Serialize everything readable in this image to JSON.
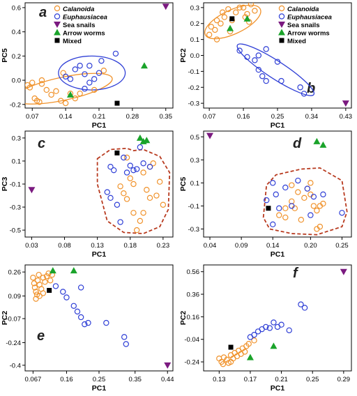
{
  "colors": {
    "calanoida": "#f0922b",
    "euphausiacea": "#2f3fd6",
    "sea_snails": "#7b1a80",
    "arrow_worms": "#1aa32a",
    "mixed": "#000000",
    "convex_hull": "#b83a1f"
  },
  "legend_items": [
    {
      "label": "Calanoida",
      "italic": true,
      "shape": "open-circle",
      "color": "#f0922b"
    },
    {
      "label": "Euphausiacea",
      "italic": true,
      "shape": "open-circle",
      "color": "#2f3fd6"
    },
    {
      "label": "Sea snails",
      "italic": false,
      "shape": "triangle-down",
      "color": "#7b1a80"
    },
    {
      "label": "Arrow worms",
      "italic": false,
      "shape": "triangle-up",
      "color": "#1aa32a"
    },
    {
      "label": "Mixed",
      "italic": false,
      "shape": "square",
      "color": "#000000"
    }
  ],
  "chart_data": [
    {
      "panel": "a",
      "type": "scatter",
      "xlabel": "PC1",
      "ylabel": "PC5",
      "xlim": [
        0.055,
        0.365
      ],
      "ylim": [
        -0.23,
        0.64
      ],
      "xticks": [
        "0.07",
        "0.14",
        "0.21",
        "0.28",
        "0.35"
      ],
      "xtick_values": [
        0.07,
        0.14,
        0.21,
        0.28,
        0.35
      ],
      "yticks": [
        "-0.2",
        "0.0",
        "0.2",
        "0.4",
        "0.6"
      ],
      "ytick_values": [
        -0.2,
        0.0,
        0.2,
        0.4,
        0.6
      ],
      "legend": true,
      "legend_position": "top-left",
      "series": [
        {
          "name": "Calanoida",
          "group": "calanoida",
          "x": [
            0.06,
            0.065,
            0.07,
            0.075,
            0.08,
            0.085,
            0.09,
            0.1,
            0.11,
            0.12,
            0.13,
            0.14,
            0.15,
            0.16,
            0.17,
            0.2,
            0.22,
            0.09,
            0.135
          ],
          "y": [
            -0.04,
            -0.06,
            -0.02,
            -0.15,
            -0.17,
            -0.18,
            -0.03,
            -0.08,
            -0.12,
            -0.09,
            -0.17,
            -0.19,
            -0.11,
            -0.15,
            -0.11,
            -0.08,
            0.08,
            0.0,
            0.06
          ]
        },
        {
          "name": "Euphausiacea",
          "group": "euphausiacea",
          "x": [
            0.14,
            0.15,
            0.16,
            0.17,
            0.18,
            0.18,
            0.19,
            0.19,
            0.2,
            0.21,
            0.215,
            0.245
          ],
          "y": [
            0.03,
            0.01,
            0.09,
            0.12,
            0.05,
            -0.07,
            -0.02,
            0.12,
            0.01,
            0.06,
            0.16,
            0.22
          ]
        },
        {
          "name": "Sea snails",
          "group": "sea_snails",
          "x": [
            0.35
          ],
          "y": [
            0.61
          ]
        },
        {
          "name": "Arrow worms",
          "group": "arrow_worms",
          "x": [
            0.15,
            0.305
          ],
          "y": [
            -0.12,
            0.12
          ]
        },
        {
          "name": "Mixed",
          "group": "mixed",
          "x": [
            0.248
          ],
          "y": [
            -0.19
          ]
        }
      ],
      "ellipses": [
        {
          "group": "calanoida",
          "cx": 0.135,
          "cy": -0.07,
          "rx": 0.105,
          "ry": 0.095,
          "angle_deg": -12
        },
        {
          "group": "euphausiacea",
          "cx": 0.195,
          "cy": 0.06,
          "rx": 0.07,
          "ry": 0.14,
          "angle_deg": 0
        }
      ]
    },
    {
      "panel": "b",
      "type": "scatter",
      "xlabel": "PC1",
      "ylabel": "PC2",
      "xlim": [
        0.055,
        0.445
      ],
      "ylim": [
        -0.33,
        0.33
      ],
      "xticks": [
        "0.07",
        "0.16",
        "0.25",
        "0.34",
        "0.43"
      ],
      "xtick_values": [
        0.07,
        0.16,
        0.25,
        0.34,
        0.43
      ],
      "yticks": [
        "-0.3",
        "-0.2",
        "-0.1",
        "0.0",
        "0.1",
        "0.2",
        "0.3"
      ],
      "ytick_values": [
        -0.3,
        -0.2,
        -0.1,
        0.0,
        0.1,
        0.2,
        0.3
      ],
      "legend": true,
      "legend_position": "top-right",
      "series": [
        {
          "name": "Calanoida",
          "group": "calanoida",
          "x": [
            0.07,
            0.075,
            0.085,
            0.09,
            0.1,
            0.105,
            0.11,
            0.12,
            0.13,
            0.14,
            0.15,
            0.16,
            0.165,
            0.17,
            0.175,
            0.18,
            0.19,
            0.09,
            0.125
          ],
          "y": [
            0.13,
            0.18,
            0.16,
            0.22,
            0.2,
            0.27,
            0.24,
            0.29,
            0.22,
            0.27,
            0.3,
            0.3,
            0.24,
            0.26,
            0.21,
            0.32,
            0.28,
            0.1,
            0.15
          ]
        },
        {
          "name": "Euphausiacea",
          "group": "euphausiacea",
          "x": [
            0.15,
            0.17,
            0.19,
            0.2,
            0.21,
            0.2,
            0.22,
            0.22,
            0.25,
            0.26,
            0.31,
            0.32
          ],
          "y": [
            0.03,
            -0.01,
            -0.03,
            -0.09,
            -0.13,
            0.0,
            -0.16,
            0.04,
            -0.04,
            -0.16,
            -0.2,
            -0.24
          ]
        },
        {
          "name": "Sea snails",
          "group": "sea_snails",
          "x": [
            0.43
          ],
          "y": [
            -0.3
          ]
        },
        {
          "name": "Arrow worms",
          "group": "arrow_worms",
          "x": [
            0.125,
            0.17
          ],
          "y": [
            0.17,
            0.23
          ]
        },
        {
          "name": "Mixed",
          "group": "mixed",
          "x": [
            0.13
          ],
          "y": [
            0.23
          ]
        }
      ],
      "ellipses": [
        {
          "group": "calanoida",
          "cx": 0.132,
          "cy": 0.21,
          "rx": 0.08,
          "ry": 0.075,
          "angle_deg": -25
        },
        {
          "group": "euphausiacea",
          "cx": 0.245,
          "cy": -0.09,
          "rx": 0.12,
          "ry": 0.055,
          "angle_deg": 33
        }
      ]
    },
    {
      "panel": "c",
      "type": "scatter",
      "xlabel": "PC1",
      "ylabel": "PC3",
      "xlim": [
        0.02,
        0.245
      ],
      "ylim": [
        -0.56,
        0.36
      ],
      "xticks": [
        "0.03",
        "0.08",
        "0.13",
        "0.18",
        "0.23"
      ],
      "xtick_values": [
        0.03,
        0.08,
        0.13,
        0.18,
        0.23
      ],
      "yticks": [
        "-0.5",
        "-0.3",
        "-0.1",
        "0.1",
        "0.3"
      ],
      "ytick_values": [
        -0.5,
        -0.3,
        -0.1,
        0.1,
        0.3
      ],
      "legend": false,
      "series": [
        {
          "name": "Calanoida",
          "group": "calanoida",
          "x": [
            0.165,
            0.17,
            0.175,
            0.18,
            0.185,
            0.19,
            0.195,
            0.2,
            0.205,
            0.21,
            0.215,
            0.22,
            0.225,
            0.23,
            0.2,
            0.175,
            0.185,
            0.21
          ],
          "y": [
            -0.12,
            -0.18,
            -0.23,
            -0.05,
            -0.35,
            -0.5,
            -0.42,
            0.0,
            -0.15,
            0.05,
            0.08,
            -0.2,
            -0.08,
            -0.28,
            -0.35,
            0.13,
            -0.1,
            -0.22
          ]
        },
        {
          "name": "Euphausiacea",
          "group": "euphausiacea",
          "x": [
            0.145,
            0.15,
            0.155,
            0.16,
            0.165,
            0.17,
            0.175,
            0.18,
            0.185,
            0.19,
            0.195,
            0.2,
            0.21,
            0.15
          ],
          "y": [
            -0.17,
            0.05,
            0.02,
            -0.28,
            -0.43,
            0.13,
            0.0,
            0.06,
            0.02,
            0.03,
            0.22,
            0.08,
            0.05,
            -0.22
          ]
        },
        {
          "name": "Sea snails",
          "group": "sea_snails",
          "x": [
            0.03
          ],
          "y": [
            -0.15
          ]
        },
        {
          "name": "Arrow worms",
          "group": "arrow_worms",
          "x": [
            0.195,
            0.2,
            0.205
          ],
          "y": [
            0.3,
            0.27,
            0.28
          ]
        },
        {
          "name": "Mixed",
          "group": "mixed",
          "x": [
            0.16
          ],
          "y": [
            0.17
          ]
        }
      ],
      "hull": {
        "group": "convex_hull",
        "x": [
          0.13,
          0.15,
          0.175,
          0.185,
          0.2,
          0.225,
          0.24,
          0.238,
          0.225,
          0.2,
          0.17,
          0.145,
          0.13
        ],
        "y": [
          0.12,
          0.2,
          0.21,
          0.19,
          0.2,
          0.14,
          0.0,
          -0.32,
          -0.47,
          -0.53,
          -0.52,
          -0.42,
          -0.1
        ]
      }
    },
    {
      "panel": "d",
      "type": "scatter",
      "xlabel": "PC1",
      "ylabel": "PC5",
      "xlim": [
        0.03,
        0.265
      ],
      "ylim": [
        -0.37,
        0.55
      ],
      "xticks": [
        "0.04",
        "0.09",
        "0.14",
        "0.20",
        "0.25"
      ],
      "xtick_values": [
        0.04,
        0.09,
        0.14,
        0.2,
        0.25
      ],
      "yticks": [
        "-0.3",
        "-0.1",
        "0.1",
        "0.3",
        "0.5"
      ],
      "ytick_values": [
        -0.3,
        -0.1,
        0.1,
        0.3,
        0.5
      ],
      "legend": false,
      "series": [
        {
          "name": "Calanoida",
          "group": "calanoida",
          "x": [
            0.15,
            0.16,
            0.17,
            0.175,
            0.18,
            0.19,
            0.195,
            0.2,
            0.205,
            0.21,
            0.215,
            0.22,
            0.185,
            0.2,
            0.21,
            0.17,
            0.16,
            0.215
          ],
          "y": [
            -0.18,
            -0.2,
            -0.06,
            -0.12,
            0.02,
            -0.03,
            0.05,
            0.0,
            -0.1,
            -0.14,
            -0.28,
            -0.08,
            -0.22,
            0.1,
            -0.3,
            0.08,
            -0.12,
            -0.1
          ]
        },
        {
          "name": "Euphausiacea",
          "group": "euphausiacea",
          "x": [
            0.13,
            0.14,
            0.145,
            0.15,
            0.16,
            0.17,
            0.18,
            0.195,
            0.2,
            0.205,
            0.22,
            0.25,
            0.14
          ],
          "y": [
            -0.05,
            0.1,
            0.0,
            -0.12,
            0.06,
            -0.1,
            0.12,
            0.05,
            -0.18,
            -0.02,
            0.0,
            -0.16,
            -0.26
          ]
        },
        {
          "name": "Sea snails",
          "group": "sea_snails",
          "x": [
            0.04
          ],
          "y": [
            0.51
          ]
        },
        {
          "name": "Arrow worms",
          "group": "arrow_worms",
          "x": [
            0.21,
            0.22
          ],
          "y": [
            0.46,
            0.43
          ]
        },
        {
          "name": "Mixed",
          "group": "mixed",
          "x": [
            0.133
          ],
          "y": [
            -0.12
          ]
        }
      ],
      "hull": {
        "group": "convex_hull",
        "x": [
          0.125,
          0.13,
          0.145,
          0.185,
          0.215,
          0.25,
          0.258,
          0.25,
          0.21,
          0.17,
          0.135,
          0.125
        ],
        "y": [
          -0.2,
          0.08,
          0.17,
          0.22,
          0.23,
          0.12,
          -0.15,
          -0.28,
          -0.35,
          -0.34,
          -0.3,
          -0.2
        ]
      }
    },
    {
      "panel": "e",
      "type": "scatter",
      "xlabel": "PC1",
      "ylabel": "PC2",
      "xlim": [
        0.045,
        0.455
      ],
      "ylim": [
        -0.44,
        0.31
      ],
      "xticks": [
        "0.067",
        "0.16",
        "0.25",
        "0.35",
        "0.44"
      ],
      "xtick_values": [
        0.067,
        0.16,
        0.25,
        0.35,
        0.44
      ],
      "yticks": [
        "-0.4",
        "-0.24",
        "-0.07",
        "0.09",
        "0.26"
      ],
      "ytick_values": [
        -0.4,
        -0.24,
        -0.07,
        0.09,
        0.26
      ],
      "legend": false,
      "series": [
        {
          "name": "Calanoida",
          "group": "calanoida",
          "x": [
            0.067,
            0.07,
            0.072,
            0.075,
            0.078,
            0.08,
            0.083,
            0.085,
            0.09,
            0.095,
            0.1,
            0.105,
            0.11,
            0.115,
            0.12,
            0.075,
            0.085,
            0.095
          ],
          "y": [
            0.22,
            0.18,
            0.15,
            0.12,
            0.1,
            0.2,
            0.24,
            0.17,
            0.14,
            0.22,
            0.19,
            0.23,
            0.25,
            0.2,
            0.24,
            0.07,
            0.09,
            0.11
          ]
        },
        {
          "name": "Euphausiacea",
          "group": "euphausiacea",
          "x": [
            0.13,
            0.15,
            0.16,
            0.18,
            0.19,
            0.2,
            0.21,
            0.22,
            0.2,
            0.27,
            0.32,
            0.325
          ],
          "y": [
            0.16,
            0.12,
            0.08,
            0.02,
            -0.02,
            -0.06,
            -0.11,
            -0.1,
            0.15,
            -0.1,
            -0.2,
            -0.25
          ]
        },
        {
          "name": "Sea snails",
          "group": "sea_snails",
          "x": [
            0.44
          ],
          "y": [
            -0.4
          ]
        },
        {
          "name": "Arrow worms",
          "group": "arrow_worms",
          "x": [
            0.122,
            0.18
          ],
          "y": [
            0.27,
            0.27
          ]
        },
        {
          "name": "Mixed",
          "group": "mixed",
          "x": [
            0.112
          ],
          "y": [
            0.13
          ]
        }
      ]
    },
    {
      "panel": "f",
      "type": "scatter",
      "xlabel": "PC1",
      "ylabel": "PC2",
      "xlim": [
        0.11,
        0.3
      ],
      "ylim": [
        -0.32,
        0.62
      ],
      "xticks": [
        "0.13",
        "0.17",
        "0.21",
        "0.25",
        "0.29"
      ],
      "xtick_values": [
        0.13,
        0.17,
        0.21,
        0.25,
        0.29
      ],
      "yticks": [
        "-0.24",
        "-0.04",
        "0.16",
        "0.36",
        "0.56"
      ],
      "ytick_values": [
        -0.24,
        -0.04,
        0.16,
        0.36,
        0.56
      ],
      "legend": false,
      "series": [
        {
          "name": "Calanoida",
          "group": "calanoida",
          "x": [
            0.13,
            0.133,
            0.136,
            0.14,
            0.142,
            0.145,
            0.148,
            0.15,
            0.153,
            0.155,
            0.158,
            0.16,
            0.163,
            0.165,
            0.168,
            0.175,
            0.135,
            0.145
          ],
          "y": [
            -0.21,
            -0.24,
            -0.2,
            -0.22,
            -0.25,
            -0.18,
            -0.21,
            -0.16,
            -0.19,
            -0.14,
            -0.17,
            -0.12,
            -0.15,
            -0.1,
            -0.08,
            -0.05,
            -0.26,
            -0.24
          ]
        },
        {
          "name": "Euphausiacea",
          "group": "euphausiacea",
          "x": [
            0.17,
            0.175,
            0.18,
            0.185,
            0.19,
            0.195,
            0.2,
            0.21,
            0.22,
            0.235,
            0.24,
            0.205
          ],
          "y": [
            -0.02,
            0.0,
            0.03,
            0.05,
            0.07,
            0.06,
            0.11,
            0.09,
            0.04,
            0.27,
            0.24,
            0.07
          ]
        },
        {
          "name": "Sea snails",
          "group": "sea_snails",
          "x": [
            0.29
          ],
          "y": [
            0.56
          ]
        },
        {
          "name": "Arrow worms",
          "group": "arrow_worms",
          "x": [
            0.17,
            0.2
          ],
          "y": [
            -0.2,
            -0.1
          ]
        },
        {
          "name": "Mixed",
          "group": "mixed",
          "x": [
            0.145
          ],
          "y": [
            -0.11
          ]
        }
      ]
    }
  ]
}
